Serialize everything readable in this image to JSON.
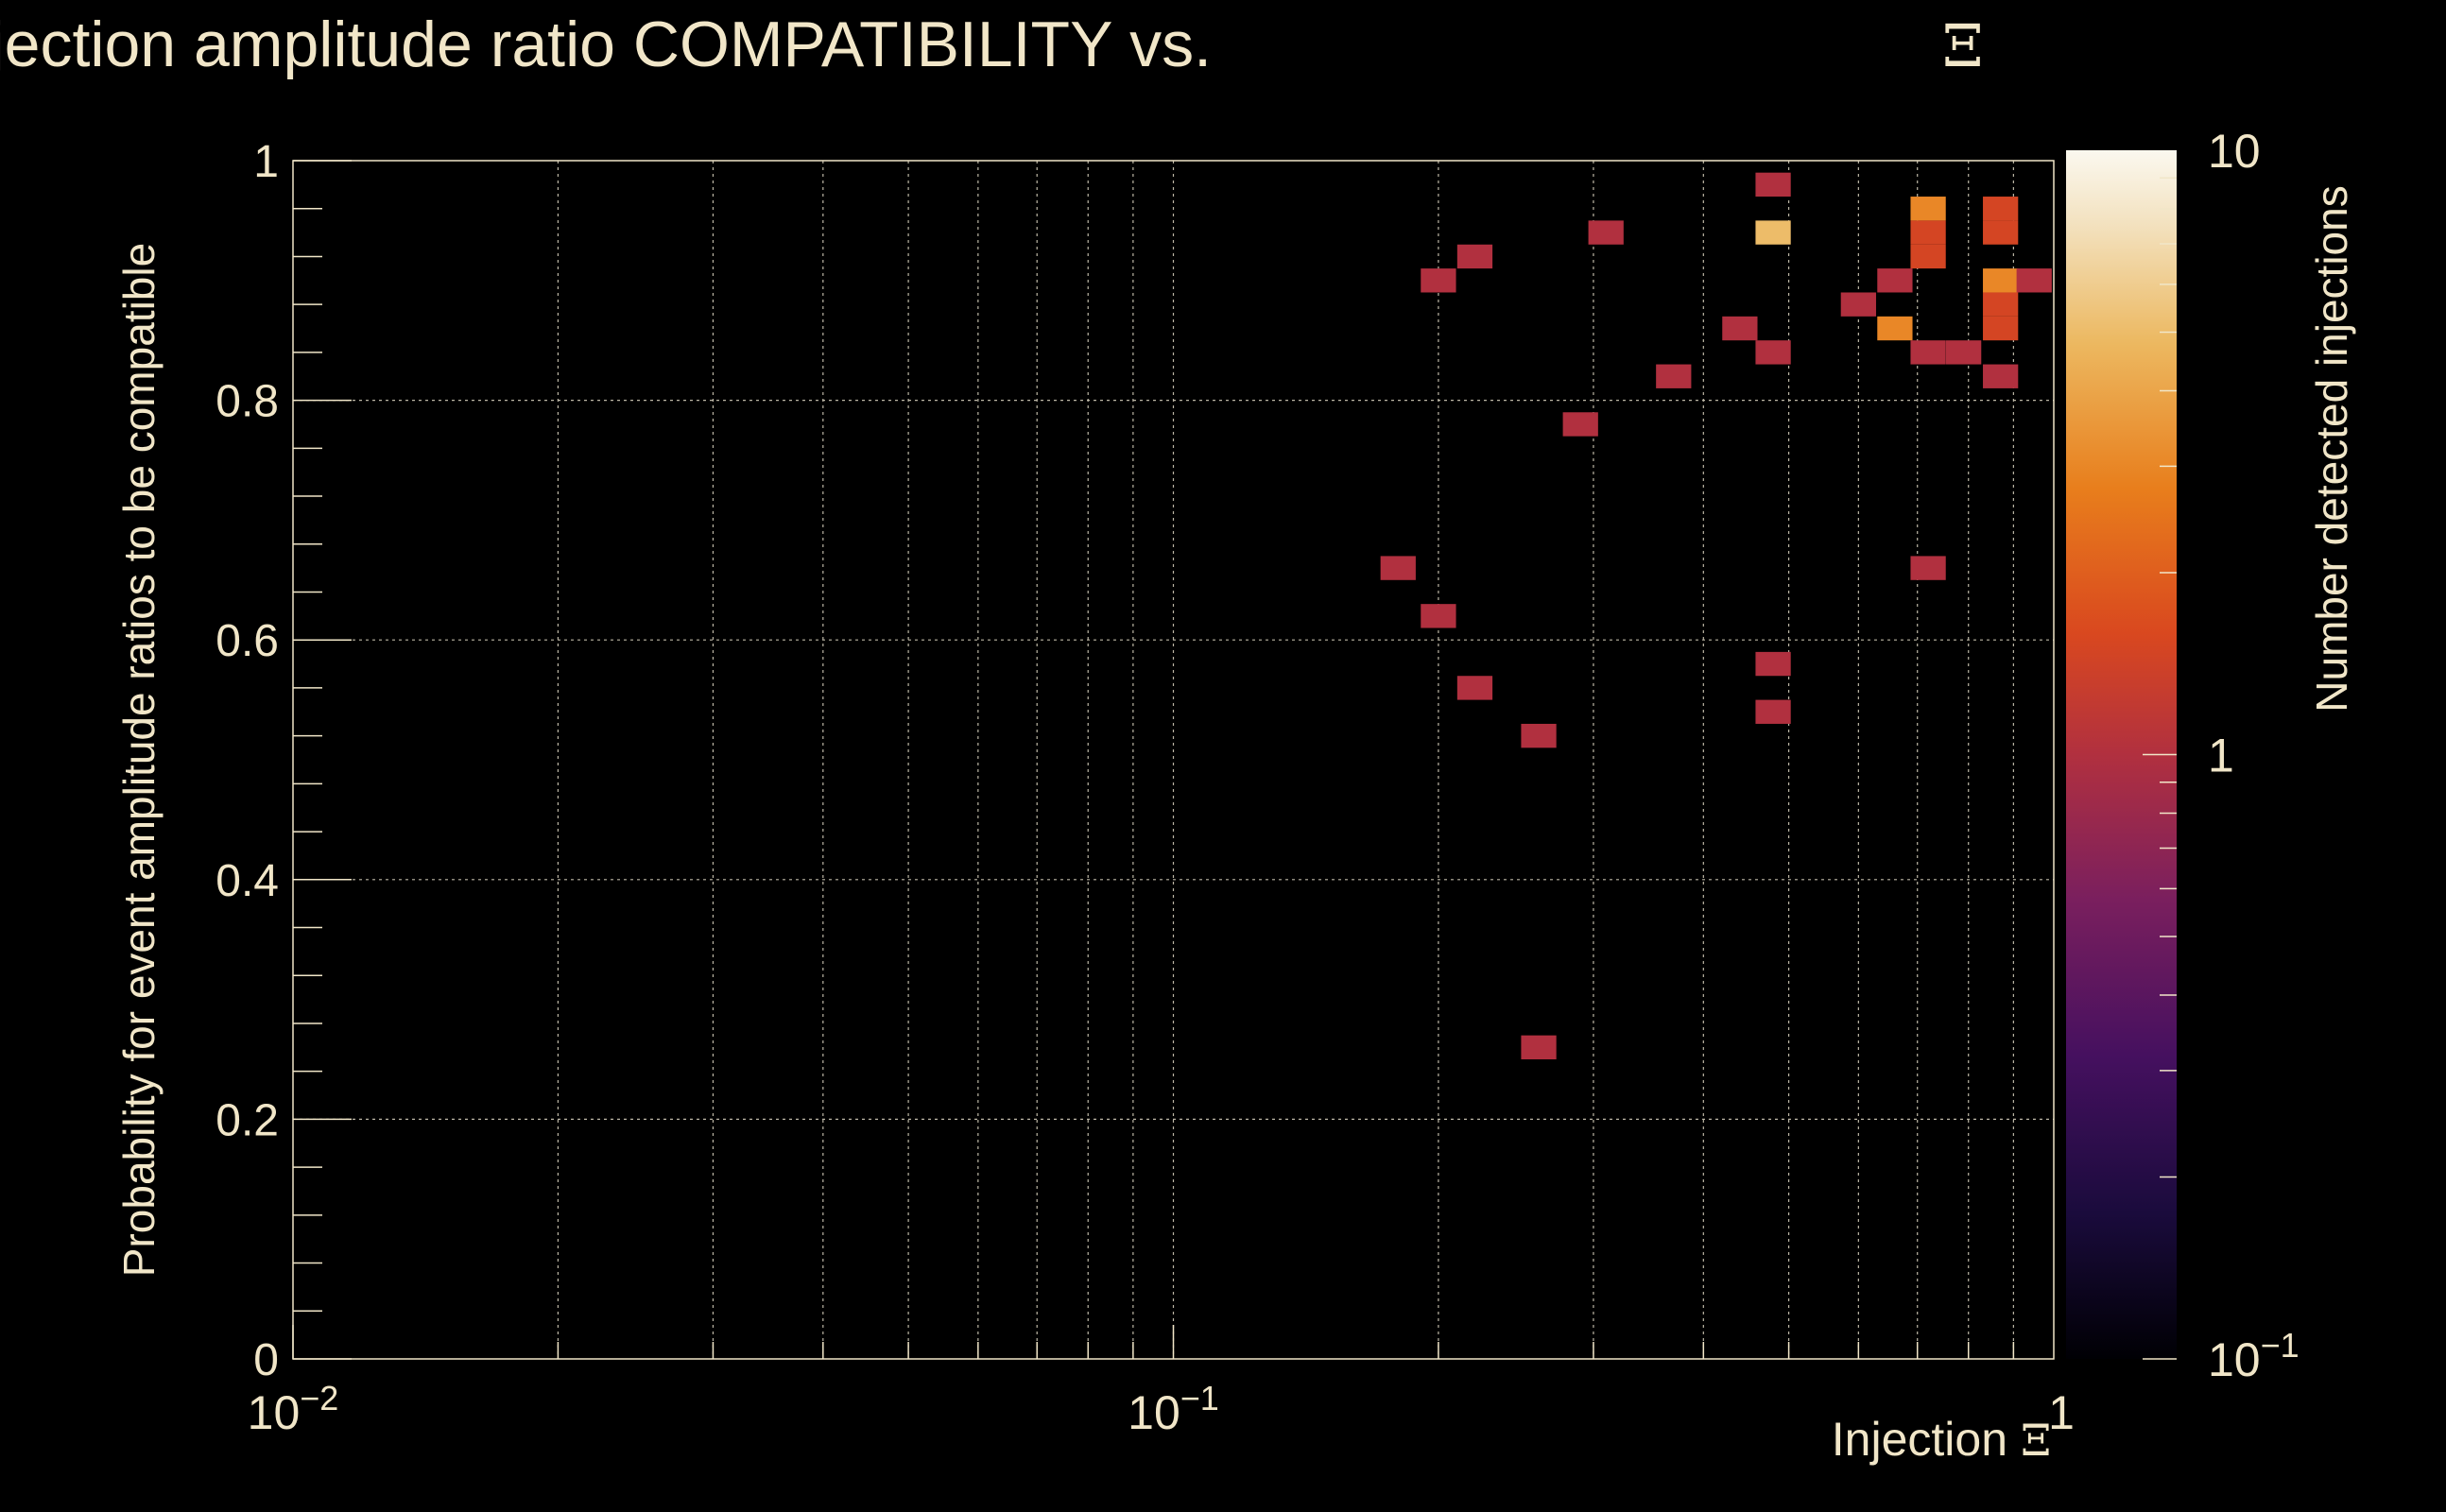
{
  "chart_data": {
    "type": "heatmap",
    "title": "Injection amplitude ratio COMPATIBILITY vs.",
    "title_symbol": "Ξ",
    "xlabel": "Injection",
    "xlabel_symbol": "Ξ",
    "ylabel": "Probability for event amplitude ratios to be compatible",
    "zlabel": "Number detected injections",
    "x_scale": "log",
    "xlim": [
      0.01,
      1
    ],
    "ylim": [
      0,
      1
    ],
    "z_scale": "log",
    "zlim": [
      0.1,
      10
    ],
    "grid": true,
    "x_ticks": [
      {
        "value": 0.01,
        "base": "10",
        "exp": "−2"
      },
      {
        "value": 0.1,
        "base": "10",
        "exp": "−1"
      },
      {
        "value": 1,
        "base": "1",
        "exp": ""
      }
    ],
    "y_ticks": [
      {
        "value": 0,
        "label": "0"
      },
      {
        "value": 0.2,
        "label": "0.2"
      },
      {
        "value": 0.4,
        "label": "0.4"
      },
      {
        "value": 0.6,
        "label": "0.6"
      },
      {
        "value": 0.8,
        "label": "0.8"
      },
      {
        "value": 1,
        "label": "1"
      }
    ],
    "z_ticks": [
      {
        "value": 10,
        "base": "10",
        "exp": ""
      },
      {
        "value": 1,
        "base": "1",
        "exp": ""
      },
      {
        "value": 0.1,
        "base": "10",
        "exp": "−1"
      }
    ],
    "bin_width_log10": 0.04,
    "bin_height": 0.02,
    "cells": [
      {
        "x": 0.48,
        "y": 0.98,
        "count": 1
      },
      {
        "x": 0.48,
        "y": 0.94,
        "count": 5
      },
      {
        "x": 0.31,
        "y": 0.94,
        "count": 1
      },
      {
        "x": 0.22,
        "y": 0.92,
        "count": 1
      },
      {
        "x": 0.2,
        "y": 0.9,
        "count": 1
      },
      {
        "x": 0.72,
        "y": 0.96,
        "count": 3
      },
      {
        "x": 0.72,
        "y": 0.94,
        "count": 1.5
      },
      {
        "x": 0.72,
        "y": 0.92,
        "count": 1.5
      },
      {
        "x": 0.66,
        "y": 0.9,
        "count": 1
      },
      {
        "x": 0.6,
        "y": 0.88,
        "count": 1
      },
      {
        "x": 0.66,
        "y": 0.86,
        "count": 3
      },
      {
        "x": 0.87,
        "y": 0.96,
        "count": 1.5
      },
      {
        "x": 0.87,
        "y": 0.94,
        "count": 1.5
      },
      {
        "x": 0.87,
        "y": 0.9,
        "count": 3
      },
      {
        "x": 0.95,
        "y": 0.9,
        "count": 1
      },
      {
        "x": 0.87,
        "y": 0.88,
        "count": 1.5
      },
      {
        "x": 0.87,
        "y": 0.86,
        "count": 1.5
      },
      {
        "x": 0.44,
        "y": 0.86,
        "count": 1
      },
      {
        "x": 0.48,
        "y": 0.84,
        "count": 1
      },
      {
        "x": 0.72,
        "y": 0.84,
        "count": 1
      },
      {
        "x": 0.79,
        "y": 0.84,
        "count": 1
      },
      {
        "x": 0.37,
        "y": 0.82,
        "count": 1
      },
      {
        "x": 0.87,
        "y": 0.82,
        "count": 1
      },
      {
        "x": 0.29,
        "y": 0.78,
        "count": 1
      },
      {
        "x": 0.18,
        "y": 0.66,
        "count": 1
      },
      {
        "x": 0.72,
        "y": 0.66,
        "count": 1
      },
      {
        "x": 0.2,
        "y": 0.62,
        "count": 1
      },
      {
        "x": 0.48,
        "y": 0.58,
        "count": 1
      },
      {
        "x": 0.22,
        "y": 0.56,
        "count": 1
      },
      {
        "x": 0.48,
        "y": 0.54,
        "count": 1
      },
      {
        "x": 0.26,
        "y": 0.52,
        "count": 1
      },
      {
        "x": 0.26,
        "y": 0.26,
        "count": 1
      }
    ]
  },
  "colors": {
    "background": "#000000",
    "text": "#f1e6c8",
    "grid": "#bdb7a6",
    "palette": [
      "#000004",
      "#1f0c48",
      "#550f6d",
      "#88226a",
      "#ba3655",
      "#e35933",
      "#f98e09",
      "#f8c932",
      "#fcffa4",
      "#fcfdf5"
    ]
  }
}
